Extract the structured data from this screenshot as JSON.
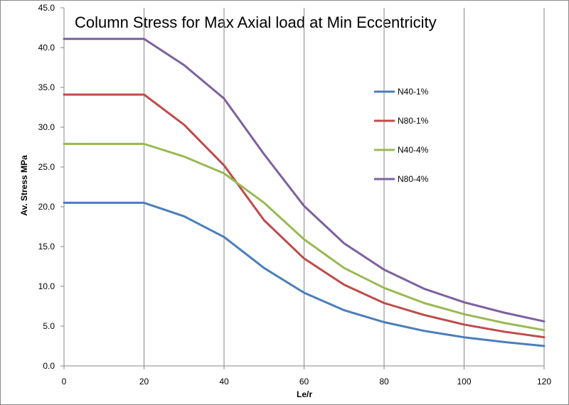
{
  "chart_data": {
    "type": "line",
    "title": "Column Stress for Max Axial load at Min Eccentricity",
    "xlabel": "Le/r",
    "ylabel": "Av. Stress MPa",
    "xlim": [
      0,
      120
    ],
    "ylim": [
      0,
      45
    ],
    "x_ticks": [
      0,
      20,
      40,
      60,
      80,
      100,
      120
    ],
    "y_ticks": [
      0,
      5,
      10,
      15,
      20,
      25,
      30,
      35,
      40,
      45
    ],
    "y_tick_labels": [
      "0.0",
      "5.0",
      "10.0",
      "15.0",
      "20.0",
      "25.0",
      "30.0",
      "35.0",
      "40.0",
      "45.0"
    ],
    "x_tick_labels": [
      "0",
      "20",
      "40",
      "60",
      "80",
      "100",
      "120"
    ],
    "grid": "vertical",
    "legend_position": "right",
    "x": [
      0,
      10,
      20,
      30,
      40,
      50,
      60,
      70,
      80,
      90,
      100,
      110,
      120
    ],
    "series": [
      {
        "name": "N40-1%",
        "color": "#4a7ebb",
        "values": [
          20.5,
          20.5,
          20.5,
          18.8,
          16.2,
          12.3,
          9.2,
          7.0,
          5.5,
          4.4,
          3.6,
          3.0,
          2.5
        ]
      },
      {
        "name": "N80-1%",
        "color": "#be4b48",
        "values": [
          34.1,
          34.1,
          34.1,
          30.3,
          25.2,
          18.3,
          13.5,
          10.2,
          7.9,
          6.4,
          5.2,
          4.3,
          3.6
        ]
      },
      {
        "name": "N40-4%",
        "color": "#98b954",
        "values": [
          27.9,
          27.9,
          27.9,
          26.3,
          24.2,
          20.5,
          15.9,
          12.3,
          9.8,
          7.9,
          6.5,
          5.4,
          4.5
        ]
      },
      {
        "name": "N80-4%",
        "color": "#7d60a0",
        "values": [
          41.1,
          41.1,
          41.1,
          37.8,
          33.6,
          26.6,
          20.1,
          15.4,
          12.1,
          9.7,
          8.0,
          6.7,
          5.6
        ]
      }
    ]
  }
}
